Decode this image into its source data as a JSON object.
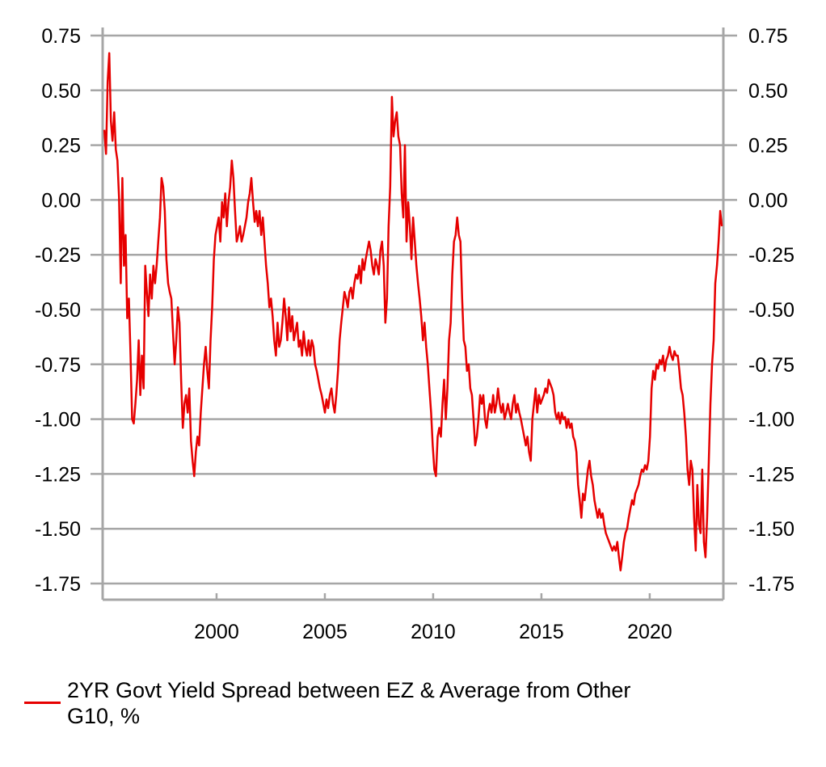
{
  "chart_data": {
    "type": "line",
    "title": "",
    "xlabel": "",
    "ylabel": "",
    "xlim": [
      1994.74,
      2023.4
    ],
    "ylim": [
      -1.75,
      0.75
    ],
    "grid": true,
    "legend_placement": "bottom-left",
    "x_ticks": [
      "2000",
      "2005",
      "2010",
      "2015",
      "2020"
    ],
    "x_tick_values": [
      2000,
      2005,
      2010,
      2015,
      2020
    ],
    "y_ticks": [
      "0.75",
      "0.50",
      "0.25",
      "0.00",
      "-0.25",
      "-0.50",
      "-0.75",
      "-1.00",
      "-1.25",
      "-1.50",
      "-1.75"
    ],
    "y_tick_values": [
      0.75,
      0.5,
      0.25,
      0,
      -0.25,
      -0.5,
      -0.75,
      -1,
      -1.25,
      -1.5,
      -1.75
    ],
    "series": [
      {
        "name": "2YR Govt Yield Spread between EZ & Average from Other G10, %",
        "color": "#e60000",
        "x_start": 1994.82,
        "x_end": 2023.33,
        "values": [
          0.32,
          0.21,
          0.54,
          0.67,
          0.36,
          0.27,
          0.4,
          0.23,
          0.18,
          0.01,
          -0.38,
          0.1,
          -0.3,
          -0.16,
          -0.54,
          -0.45,
          -0.71,
          -1.0,
          -1.02,
          -0.93,
          -0.82,
          -0.64,
          -0.89,
          -0.71,
          -0.86,
          -0.3,
          -0.42,
          -0.53,
          -0.34,
          -0.45,
          -0.3,
          -0.38,
          -0.3,
          -0.19,
          -0.08,
          0.1,
          0.06,
          -0.05,
          -0.27,
          -0.38,
          -0.42,
          -0.45,
          -0.6,
          -0.75,
          -0.64,
          -0.49,
          -0.56,
          -0.82,
          -1.04,
          -0.93,
          -0.89,
          -0.97,
          -0.86,
          -1.1,
          -1.19,
          -1.26,
          -1.15,
          -1.08,
          -1.12,
          -0.97,
          -0.86,
          -0.75,
          -0.67,
          -0.78,
          -0.86,
          -0.64,
          -0.49,
          -0.27,
          -0.16,
          -0.12,
          -0.08,
          -0.19,
          -0.01,
          -0.08,
          0.03,
          -0.12,
          -0.01,
          0.06,
          0.18,
          0.1,
          -0.05,
          -0.19,
          -0.16,
          -0.12,
          -0.19,
          -0.16,
          -0.12,
          -0.08,
          -0.01,
          0.03,
          0.1,
          -0.01,
          -0.1,
          -0.05,
          -0.12,
          -0.05,
          -0.16,
          -0.08,
          -0.19,
          -0.3,
          -0.38,
          -0.49,
          -0.45,
          -0.53,
          -0.64,
          -0.71,
          -0.56,
          -0.67,
          -0.64,
          -0.56,
          -0.45,
          -0.53,
          -0.64,
          -0.49,
          -0.6,
          -0.53,
          -0.64,
          -0.6,
          -0.56,
          -0.67,
          -0.64,
          -0.71,
          -0.6,
          -0.67,
          -0.71,
          -0.64,
          -0.71,
          -0.64,
          -0.67,
          -0.75,
          -0.78,
          -0.82,
          -0.86,
          -0.89,
          -0.93,
          -0.97,
          -0.91,
          -0.95,
          -0.89,
          -0.86,
          -0.93,
          -0.97,
          -0.89,
          -0.78,
          -0.64,
          -0.56,
          -0.49,
          -0.42,
          -0.45,
          -0.49,
          -0.42,
          -0.4,
          -0.45,
          -0.38,
          -0.34,
          -0.36,
          -0.3,
          -0.38,
          -0.27,
          -0.32,
          -0.27,
          -0.23,
          -0.19,
          -0.23,
          -0.3,
          -0.34,
          -0.27,
          -0.3,
          -0.34,
          -0.23,
          -0.19,
          -0.3,
          -0.56,
          -0.45,
          -0.12,
          0.06,
          0.47,
          0.29,
          0.36,
          0.4,
          0.29,
          0.25,
          0.03,
          -0.08,
          0.25,
          -0.19,
          -0.01,
          -0.12,
          -0.27,
          -0.08,
          -0.19,
          -0.3,
          -0.38,
          -0.45,
          -0.53,
          -0.64,
          -0.56,
          -0.67,
          -0.75,
          -0.86,
          -0.97,
          -1.12,
          -1.23,
          -1.26,
          -1.08,
          -1.04,
          -1.08,
          -0.93,
          -0.82,
          -1.0,
          -0.86,
          -0.64,
          -0.56,
          -0.34,
          -0.19,
          -0.16,
          -0.08,
          -0.16,
          -0.19,
          -0.45,
          -0.64,
          -0.67,
          -0.78,
          -0.75,
          -0.86,
          -0.89,
          -1.0,
          -1.12,
          -1.08,
          -1.0,
          -0.89,
          -0.93,
          -0.89,
          -1.0,
          -1.04,
          -0.97,
          -0.93,
          -0.97,
          -0.89,
          -0.97,
          -0.93,
          -0.86,
          -0.93,
          -0.97,
          -0.93,
          -1.0,
          -0.97,
          -0.93,
          -0.97,
          -1.0,
          -0.93,
          -0.89,
          -0.97,
          -0.93,
          -0.97,
          -1.0,
          -1.04,
          -1.08,
          -1.12,
          -1.08,
          -1.15,
          -1.19,
          -1.0,
          -0.93,
          -0.86,
          -0.97,
          -0.89,
          -0.93,
          -0.91,
          -0.89,
          -0.86,
          -0.88,
          -0.82,
          -0.84,
          -0.86,
          -0.89,
          -0.97,
          -1.0,
          -0.97,
          -1.02,
          -0.97,
          -1.0,
          -0.99,
          -1.04,
          -1.0,
          -1.04,
          -1.02,
          -1.08,
          -1.1,
          -1.15,
          -1.3,
          -1.37,
          -1.45,
          -1.34,
          -1.37,
          -1.3,
          -1.23,
          -1.19,
          -1.26,
          -1.3,
          -1.37,
          -1.41,
          -1.45,
          -1.41,
          -1.45,
          -1.43,
          -1.48,
          -1.52,
          -1.54,
          -1.56,
          -1.58,
          -1.6,
          -1.58,
          -1.6,
          -1.56,
          -1.63,
          -1.69,
          -1.63,
          -1.56,
          -1.52,
          -1.5,
          -1.45,
          -1.41,
          -1.37,
          -1.39,
          -1.34,
          -1.32,
          -1.3,
          -1.26,
          -1.23,
          -1.24,
          -1.21,
          -1.23,
          -1.19,
          -1.08,
          -0.86,
          -0.78,
          -0.82,
          -0.75,
          -0.77,
          -0.73,
          -0.75,
          -0.71,
          -0.78,
          -0.73,
          -0.71,
          -0.67,
          -0.71,
          -0.73,
          -0.69,
          -0.71,
          -0.71,
          -0.78,
          -0.86,
          -0.89,
          -0.97,
          -1.08,
          -1.23,
          -1.3,
          -1.19,
          -1.23,
          -1.45,
          -1.6,
          -1.3,
          -1.48,
          -1.52,
          -1.23,
          -1.56,
          -1.63,
          -1.45,
          -1.19,
          -0.93,
          -0.75,
          -0.64,
          -0.38,
          -0.3,
          -0.19,
          -0.05,
          -0.12
        ]
      }
    ]
  },
  "legend": {
    "label": "2YR Govt Yield Spread between EZ & Average from Other G10, %"
  }
}
